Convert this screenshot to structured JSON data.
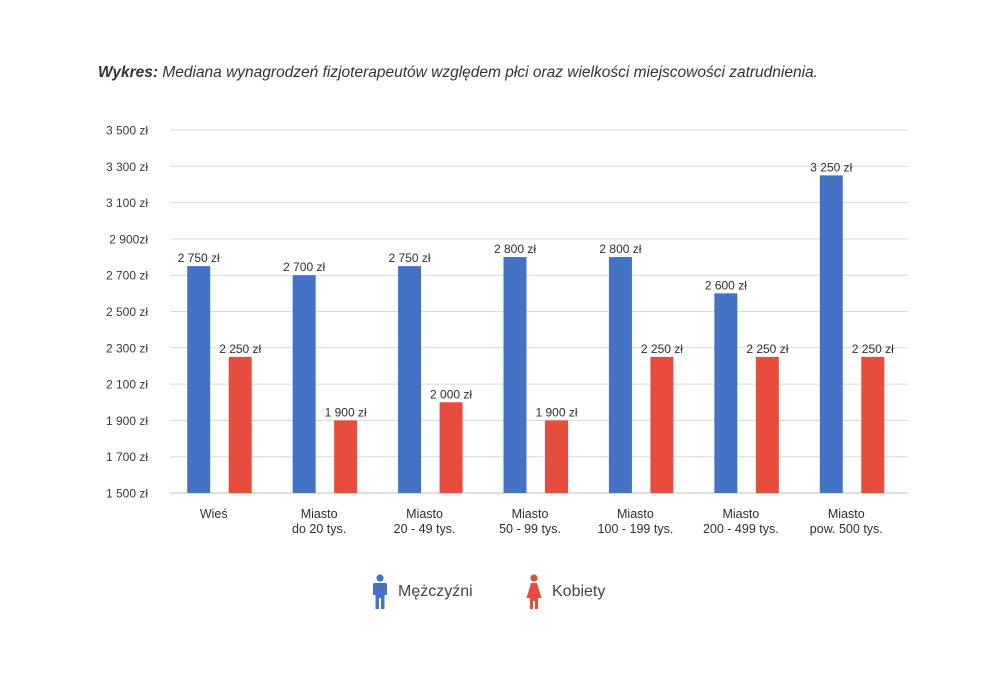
{
  "title_prefix": "Wykres:",
  "title_text": "Mediana wynagrodzeń fizjoterapeutów względem płci oraz wielkości miejscowości zatrudnienia.",
  "colors": {
    "men": "#4472C4",
    "women": "#E84C3D",
    "grid": "#d9d9d9",
    "text": "#3a3a3a"
  },
  "legend": {
    "men_label": "Mężczyźni",
    "men_icon": "man-icon",
    "women_label": "Kobiety",
    "women_icon": "woman-icon"
  },
  "chart_data": {
    "type": "bar",
    "title": "Mediana wynagrodzeń fizjoterapeutów względem płci oraz wielkości miejscowości zatrudnienia.",
    "categories": [
      [
        "Wieś"
      ],
      [
        "Miasto",
        "do 20 tys."
      ],
      [
        "Miasto",
        "20 - 49 tys."
      ],
      [
        "Miasto",
        "50 - 99 tys."
      ],
      [
        "Miasto",
        "100 - 199 tys."
      ],
      [
        "Miasto",
        "200 - 499 tys."
      ],
      [
        "Miasto",
        "pow. 500 tys."
      ]
    ],
    "series": [
      {
        "name": "Mężczyźni",
        "values": [
          2750,
          2700,
          2750,
          2800,
          2800,
          2600,
          3250
        ],
        "labels": [
          "2 750 zł",
          "2 700 zł",
          "2 750 zł",
          "2 800 zł",
          "2 800 zł",
          "2 600 zł",
          "3 250 zł"
        ]
      },
      {
        "name": "Kobiety",
        "values": [
          2250,
          1900,
          2000,
          1900,
          2250,
          2250,
          2250
        ],
        "labels": [
          "2 250 zł",
          "1 900 zł",
          "2 000 zł",
          "1 900 zł",
          "2 250 zł",
          "2 250 zł",
          "2 250 zł"
        ]
      }
    ],
    "yticks": [
      {
        "value": 1500,
        "label": "1 500 zł"
      },
      {
        "value": 1700,
        "label": "1 700 zł"
      },
      {
        "value": 1900,
        "label": "1 900 zł"
      },
      {
        "value": 2100,
        "label": "2 100 zł"
      },
      {
        "value": 2300,
        "label": "2 300 zł"
      },
      {
        "value": 2500,
        "label": "2 500 zł"
      },
      {
        "value": 2700,
        "label": "2 700 zł"
      },
      {
        "value": 2900,
        "label": "2 900zł"
      },
      {
        "value": 3100,
        "label": "3 100 zł"
      },
      {
        "value": 3300,
        "label": "3 300 zł"
      },
      {
        "value": 3500,
        "label": "3 500 zł"
      }
    ],
    "ylim": [
      1500,
      3500
    ],
    "grid": true,
    "legend_position": "bottom"
  }
}
